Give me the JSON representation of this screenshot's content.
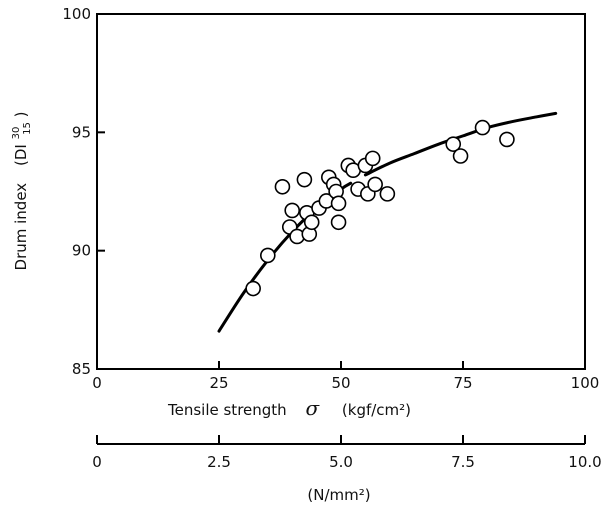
{
  "chart_data": {
    "type": "scatter",
    "title": "",
    "xlabel": "Tensile strength",
    "xlabel_symbol": "σ",
    "xlabel_unit": "(kgf/cm²)",
    "xlim": [
      0,
      100
    ],
    "x_ticks": [
      "0",
      "25",
      "50",
      "75",
      "100"
    ],
    "secondary_x": {
      "ticks": [
        "0",
        "2.5",
        "5.0",
        "7.5",
        "10.0"
      ],
      "unit": "(N/mm²)"
    },
    "ylabel": "Drum index",
    "ylabel_symbol": {
      "base": "(DI",
      "sup": "30",
      "sub": "15",
      "close": ")"
    },
    "ylim": [
      85,
      100
    ],
    "y_ticks": [
      "85",
      "90",
      "95",
      "100"
    ],
    "grid": false,
    "points": [
      [
        32,
        88.4
      ],
      [
        35,
        89.8
      ],
      [
        38,
        92.7
      ],
      [
        39.5,
        91.0
      ],
      [
        40,
        91.7
      ],
      [
        41,
        90.6
      ],
      [
        42.5,
        93.0
      ],
      [
        43,
        91.6
      ],
      [
        43.5,
        90.7
      ],
      [
        44,
        91.2
      ],
      [
        45.5,
        91.8
      ],
      [
        47,
        92.1
      ],
      [
        47.5,
        93.1
      ],
      [
        48.5,
        92.8
      ],
      [
        49,
        92.5
      ],
      [
        49.5,
        92.0
      ],
      [
        49.5,
        91.2
      ],
      [
        51.5,
        93.6
      ],
      [
        52.5,
        93.4
      ],
      [
        53.5,
        92.6
      ],
      [
        55,
        93.6
      ],
      [
        55.5,
        92.4
      ],
      [
        56.5,
        93.9
      ],
      [
        57,
        92.8
      ],
      [
        59.5,
        92.4
      ],
      [
        73,
        94.5
      ],
      [
        74.5,
        94.0
      ],
      [
        79,
        95.2
      ],
      [
        84,
        94.7
      ]
    ],
    "fit_curve": [
      [
        25,
        86.6
      ],
      [
        30,
        88.2
      ],
      [
        35,
        89.6
      ],
      [
        40,
        90.8
      ],
      [
        45,
        91.8
      ],
      [
        50,
        92.6
      ],
      [
        55,
        93.2
      ],
      [
        60,
        93.7
      ],
      [
        65,
        94.1
      ],
      [
        70,
        94.5
      ],
      [
        75,
        94.85
      ],
      [
        80,
        95.2
      ],
      [
        85,
        95.45
      ],
      [
        90,
        95.65
      ],
      [
        94,
        95.8
      ]
    ],
    "colors": {
      "axis": "#000000",
      "marker_fill": "#ffffff",
      "marker_stroke": "#000000",
      "curve": "#000000"
    }
  }
}
